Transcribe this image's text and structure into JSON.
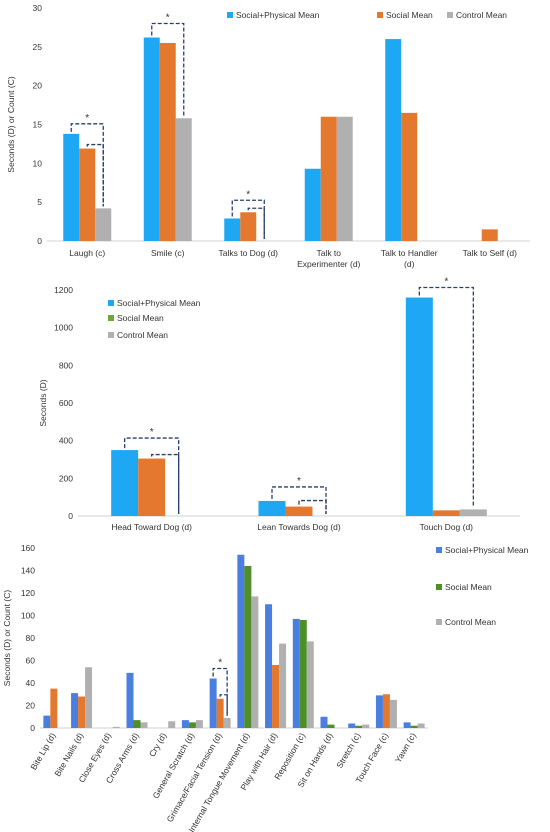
{
  "chart_data": [
    {
      "type": "bar",
      "ylabel": "Seconds (D) or Count (C)",
      "ylim": [
        0,
        30
      ],
      "yticks": [
        0,
        5,
        10,
        15,
        20,
        25,
        30
      ],
      "categories": [
        "Laugh (c)",
        "Smile (c)",
        "Talks to Dog (d)",
        "Talk to Experimenter (d)",
        "Talk to Handler (d)",
        "Talk to Self (d)"
      ],
      "series": [
        {
          "name": "Social+Physical Mean",
          "values": [
            13.8,
            26.2,
            2.9,
            9.3,
            26.0,
            0
          ],
          "color": "#1ea7f2"
        },
        {
          "name": "Social Mean",
          "values": [
            11.9,
            25.5,
            3.7,
            16.0,
            16.5,
            1.5
          ],
          "color": "#e4782e"
        },
        {
          "name": "Control Mean",
          "values": [
            4.2,
            15.8,
            0,
            16.0,
            0,
            0
          ],
          "color": "#b0b0b0"
        }
      ],
      "significance_label": "*",
      "legend": "top"
    },
    {
      "type": "bar",
      "ylabel": "Seconds (D)",
      "ylim": [
        0,
        1200
      ],
      "yticks": [
        0,
        200,
        400,
        600,
        800,
        1000,
        1200
      ],
      "categories": [
        "Head Toward Dog (d)",
        "Lean Towards Dog (d)",
        "Touch Dog (d)"
      ],
      "series": [
        {
          "name": "Social+Physical Mean",
          "values": [
            350,
            80,
            1160
          ],
          "color": "#1ea7f2"
        },
        {
          "name": "Social Mean",
          "values": [
            305,
            50,
            30
          ],
          "color": "#e4782e"
        },
        {
          "name": "Control Mean",
          "values": [
            0,
            0,
            35
          ],
          "color": "#b0b0b0"
        }
      ],
      "legend_colors": [
        "#1ea7f2",
        "#6fa83a",
        "#b0b0b0"
      ],
      "significance_label": "*",
      "legend": "top-left"
    },
    {
      "type": "bar",
      "ylabel": "Seconds (D) or Count (C)",
      "ylim": [
        0,
        160
      ],
      "yticks": [
        0,
        20,
        40,
        60,
        80,
        100,
        120,
        140,
        160
      ],
      "categories": [
        "Bite Lip (d)",
        "Bite Nails (d)",
        "Close Eyes (d)",
        "Cross Arms (d)",
        "Cry (d)",
        "General Scratch (d)",
        "Grimace/Facial Tension (d)",
        "Internal Tongue Movement (d)",
        "Play with Hair (d)",
        "Reposition (c)",
        "Sit on Hands (d)",
        "Stretch (c)",
        "Touch Face (c)",
        "Yawn (c)"
      ],
      "series": [
        {
          "name": "Social+Physical Mean",
          "values": [
            11,
            31,
            0,
            49,
            0,
            7,
            44,
            154,
            110,
            97,
            10,
            4,
            29,
            5
          ],
          "color": "#4a7fe0"
        },
        {
          "name": "Social Mean",
          "values": [
            35,
            28,
            0,
            7,
            0,
            5,
            26,
            144,
            56,
            96,
            3,
            2,
            30,
            2
          ],
          "color": "#4f8f2a"
        },
        {
          "name": "Control Mean",
          "values": [
            0,
            54,
            1,
            5,
            6,
            7,
            9,
            117,
            75,
            77,
            0,
            3,
            25,
            4
          ],
          "color": "#b0b0b0"
        }
      ],
      "bar_colors": {
        "Bite Lip (d)": [
          "#4a7fe0",
          "#e4782e",
          "#b0b0b0"
        ],
        "Bite Nails (d)": [
          "#4a7fe0",
          "#e4782e",
          "#b0b0b0"
        ],
        "Grimace/Facial Tension (d)": [
          "#4a7fe0",
          "#e4782e",
          "#b0b0b0"
        ],
        "Play with Hair (d)": [
          "#4a7fe0",
          "#e4782e",
          "#b0b0b0"
        ],
        "Touch Face (c)": [
          "#4a7fe0",
          "#e4782e",
          "#b0b0b0"
        ]
      },
      "significance_label": "*",
      "legend": "right"
    }
  ]
}
